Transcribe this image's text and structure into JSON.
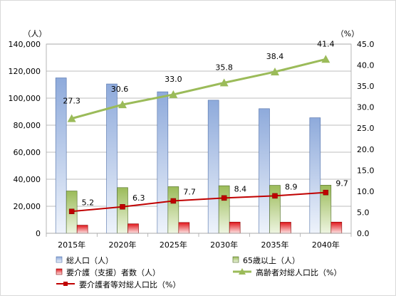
{
  "chart_data": {
    "type": "bar",
    "categories": [
      "2015年",
      "2020年",
      "2025年",
      "2030年",
      "2035年",
      "2040年"
    ],
    "left_unit": "（人）",
    "right_unit": "（%）",
    "ylim_left": [
      0,
      140000
    ],
    "ylim_right": [
      0,
      45
    ],
    "left_ticks": [
      "0",
      "20,000",
      "40,000",
      "60,000",
      "80,000",
      "100,000",
      "120,000",
      "140,000"
    ],
    "right_ticks": [
      "0.0",
      "5.0",
      "10.0",
      "15.0",
      "20.0",
      "25.0",
      "30.0",
      "35.0",
      "40.0",
      "45.0"
    ],
    "grid": "horizontal",
    "legend_position": "bottom",
    "series": [
      {
        "name": "総人口（人）",
        "kind": "bar",
        "axis": "left",
        "color": "#8eaadb",
        "values": [
          115000,
          110500,
          104700,
          98500,
          92200,
          85500
        ]
      },
      {
        "name": "65歳以上（人）",
        "kind": "bar",
        "axis": "left",
        "color": "#9bbb59",
        "values": [
          31300,
          33800,
          34500,
          35200,
          35500,
          35600
        ]
      },
      {
        "name": "要介護（支援）者数（人）",
        "kind": "bar",
        "axis": "left",
        "color": "#e0161b",
        "values": [
          6000,
          7000,
          8000,
          8300,
          8200,
          8300
        ]
      },
      {
        "name": "高齢者対総人口比（%）",
        "kind": "line",
        "axis": "right",
        "color": "#9bbb59",
        "marker": "triangle",
        "values": [
          27.3,
          30.6,
          33.0,
          35.8,
          38.4,
          41.4
        ],
        "labels": [
          "27.3",
          "30.6",
          "33.0",
          "35.8",
          "38.4",
          "41.4"
        ]
      },
      {
        "name": "要介護者等対総人口比（%）",
        "kind": "line",
        "axis": "right",
        "color": "#c00000",
        "marker": "square",
        "values": [
          5.2,
          6.3,
          7.7,
          8.4,
          8.9,
          9.7
        ],
        "labels": [
          "5.2",
          "6.3",
          "7.7",
          "8.4",
          "8.9",
          "9.7"
        ]
      }
    ]
  }
}
